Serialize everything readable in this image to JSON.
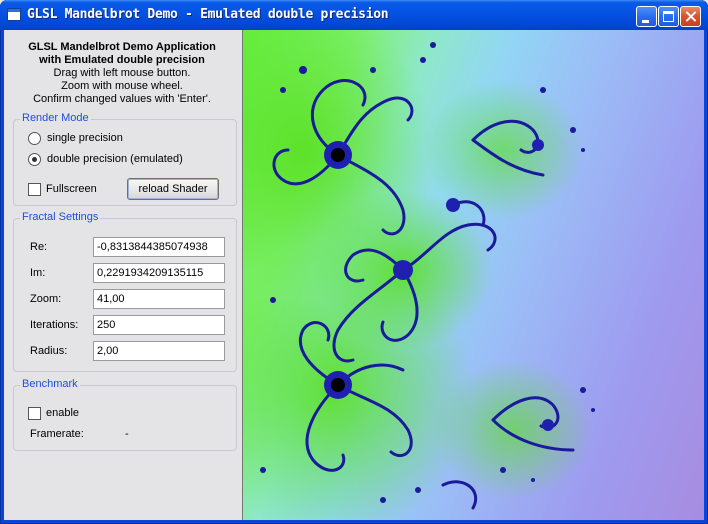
{
  "window": {
    "title": "GLSL Mandelbrot Demo - Emulated double precision"
  },
  "header": {
    "title": "GLSL Mandelbrot Demo Application",
    "subtitle": "with Emulated double precision",
    "line1": "Drag with left mouse button.",
    "line2": "Zoom with mouse wheel.",
    "line3": "Confirm changed values with 'Enter'."
  },
  "render_mode": {
    "title": "Render Mode",
    "single_label": "single precision",
    "double_label": "double precision (emulated)",
    "selected": "double",
    "fullscreen_label": "Fullscreen",
    "fullscreen_checked": false,
    "reload_label": "reload Shader"
  },
  "fractal": {
    "title": "Fractal Settings",
    "re_label": "Re:",
    "re_value": "-0,8313844385074938",
    "im_label": "Im:",
    "im_value": "0,2291934209135115",
    "zoom_label": "Zoom:",
    "zoom_value": "41,00",
    "iter_label": "Iterations:",
    "iter_value": "250",
    "radius_label": "Radius:",
    "radius_value": "2,00"
  },
  "benchmark": {
    "title": "Benchmark",
    "enable_label": "enable",
    "enable_checked": false,
    "framerate_label": "Framerate:",
    "framerate_value": "-"
  },
  "colors": {
    "group_title": "#1c4fdd",
    "fractal_green": "#66ee3c",
    "fractal_purple": "#a78ce0",
    "fractal_dark": "#1a1a9a"
  }
}
